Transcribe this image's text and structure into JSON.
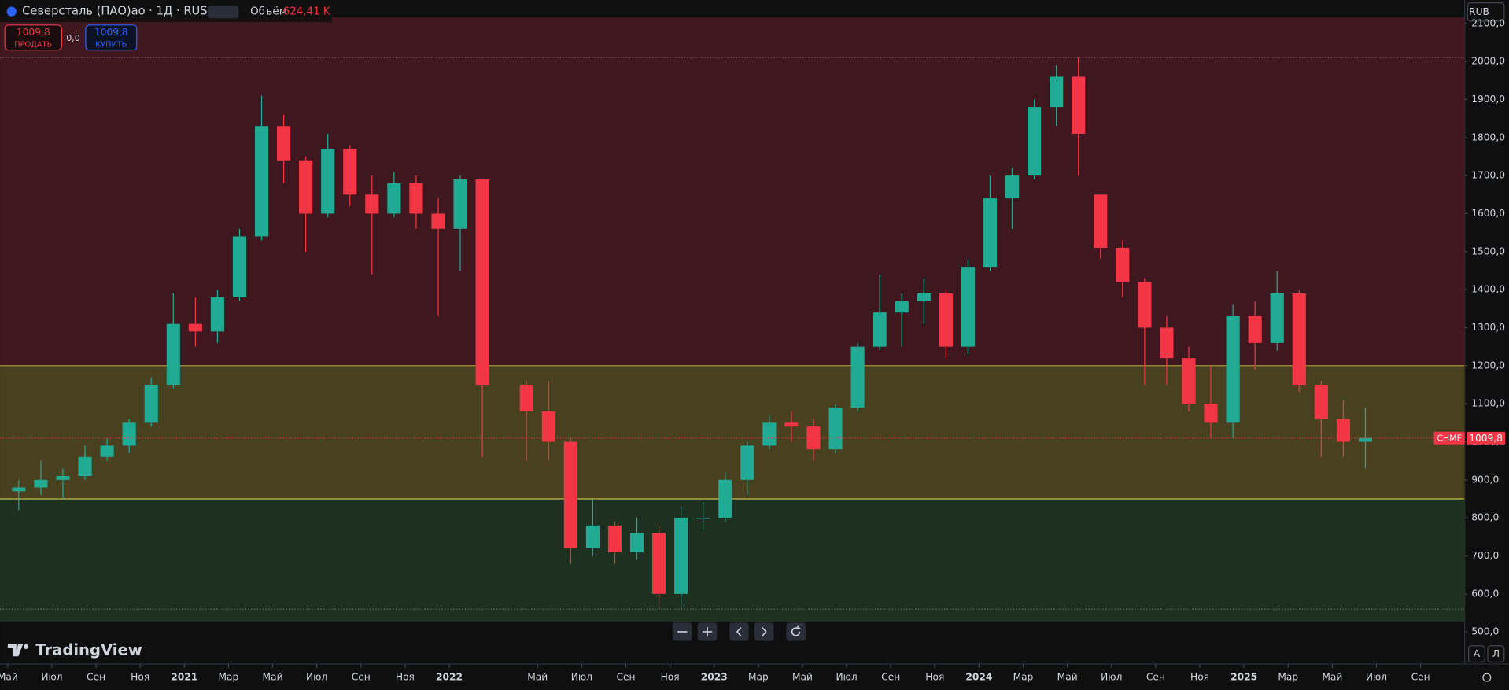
{
  "ui": {
    "symbol": "Северсталь (ПАО)ао · 1Д · RUS",
    "volume_label": "Объём",
    "volume_value": "624,41 K",
    "sell_price": "1009,8",
    "sell_label": "ПРОДАТЬ",
    "spread": "0,0",
    "buy_price": "1009,8",
    "buy_label": "КУПИТЬ",
    "currency": "RUB",
    "ticker": "CHMF",
    "brand": "TradingView",
    "auto_button": "A",
    "log_button": "Л"
  },
  "chart_data": {
    "type": "candlestick",
    "categories": [
      "2020-05",
      "2020-06",
      "2020-07",
      "2020-08",
      "2020-09",
      "2020-10",
      "2020-11",
      "2020-12",
      "2021-01",
      "2021-02",
      "2021-03",
      "2021-04",
      "2021-05",
      "2021-06",
      "2021-07",
      "2021-08",
      "2021-09",
      "2021-10",
      "2021-11",
      "2021-12",
      "2022-01",
      "2022-02",
      "2022-03",
      "2022-04",
      "2022-05",
      "2022-06",
      "2022-07",
      "2022-08",
      "2022-09",
      "2022-10",
      "2022-11",
      "2022-12",
      "2023-01",
      "2023-02",
      "2023-03",
      "2023-04",
      "2023-05",
      "2023-06",
      "2023-07",
      "2023-08",
      "2023-09",
      "2023-10",
      "2023-11",
      "2023-12",
      "2024-01",
      "2024-02",
      "2024-03",
      "2024-04",
      "2024-05",
      "2024-06",
      "2024-07",
      "2024-08",
      "2024-09",
      "2024-10",
      "2024-11",
      "2024-12",
      "2025-01",
      "2025-02",
      "2025-03",
      "2025-04",
      "2025-05",
      "2025-06"
    ],
    "open": [
      870,
      880,
      900,
      910,
      960,
      990,
      1050,
      1150,
      1310,
      1290,
      1380,
      1540,
      1830,
      1740,
      1600,
      1770,
      1650,
      1600,
      1680,
      1600,
      1560,
      1690,
      null,
      1150,
      1080,
      1000,
      720,
      780,
      710,
      760,
      600,
      800,
      800,
      900,
      990,
      1050,
      1040,
      980,
      1090,
      1250,
      1340,
      1370,
      1390,
      1250,
      1460,
      1640,
      1700,
      1880,
      1960,
      1650,
      1510,
      1420,
      1300,
      1220,
      1100,
      1050,
      1330,
      1260,
      1390,
      1150,
      1060,
      1000
    ],
    "high": [
      900,
      950,
      930,
      990,
      1010,
      1060,
      1170,
      1390,
      1380,
      1400,
      1560,
      1910,
      1860,
      1750,
      1810,
      1780,
      1700,
      1710,
      1700,
      1640,
      1700,
      1690,
      null,
      1160,
      1160,
      1010,
      850,
      790,
      800,
      780,
      830,
      840,
      920,
      1000,
      1070,
      1080,
      1060,
      1100,
      1260,
      1440,
      1390,
      1430,
      1400,
      1480,
      1700,
      1720,
      1900,
      1990,
      2010,
      1650,
      1530,
      1430,
      1330,
      1250,
      1200,
      1360,
      1370,
      1450,
      1400,
      1160,
      1110,
      1090
    ],
    "low": [
      820,
      860,
      850,
      900,
      950,
      970,
      1040,
      1140,
      1250,
      1260,
      1370,
      1530,
      1680,
      1500,
      1590,
      1620,
      1440,
      1590,
      1560,
      1330,
      1450,
      960,
      null,
      950,
      950,
      680,
      700,
      680,
      690,
      560,
      560,
      770,
      790,
      860,
      980,
      1000,
      950,
      970,
      1080,
      1240,
      1250,
      1310,
      1220,
      1230,
      1450,
      1560,
      1690,
      1830,
      1700,
      1480,
      1380,
      1150,
      1150,
      1080,
      1010,
      1010,
      1190,
      1240,
      1130,
      960,
      960,
      930
    ],
    "close": [
      880,
      900,
      910,
      960,
      990,
      1050,
      1150,
      1310,
      1290,
      1380,
      1540,
      1830,
      1740,
      1600,
      1770,
      1650,
      1600,
      1680,
      1600,
      1560,
      1690,
      1150,
      null,
      1080,
      1000,
      720,
      780,
      710,
      760,
      600,
      800,
      800,
      900,
      990,
      1050,
      1040,
      980,
      1090,
      1250,
      1340,
      1370,
      1390,
      1250,
      1460,
      1640,
      1700,
      1880,
      1960,
      1810,
      1510,
      1420,
      1300,
      1220,
      1100,
      1050,
      1330,
      1260,
      1390,
      1150,
      1060,
      1000,
      1010
    ],
    "up_color": "#22ab94",
    "down_color": "#f23645",
    "last_price": 1009.8,
    "last_price_label": "1009,8",
    "bands": [
      {
        "low": 1200,
        "high": 2116,
        "color": "#3f181f"
      },
      {
        "low": 850,
        "high": 1200,
        "color": "#48401e"
      },
      {
        "low": 527,
        "high": 850,
        "color": "#1e3020"
      }
    ],
    "levels": [
      {
        "value": 2010,
        "style": "dotted",
        "color": "#8a5a5a"
      },
      {
        "value": 1200,
        "style": "solid",
        "color": "#b5a33a"
      },
      {
        "value": 850,
        "style": "solid",
        "color": "#c8c04a"
      },
      {
        "value": 560,
        "style": "dotted",
        "color": "#6a7a6a"
      }
    ],
    "ylim": [
      527,
      2116
    ],
    "yticks": [
      {
        "value": 500,
        "label": "500,0"
      },
      {
        "value": 600,
        "label": "600,0"
      },
      {
        "value": 700,
        "label": "700,0"
      },
      {
        "value": 800,
        "label": "800,0"
      },
      {
        "value": 900,
        "label": "900,0"
      },
      {
        "value": 1000,
        "label": "1000,0"
      },
      {
        "value": 1100,
        "label": "1100,0"
      },
      {
        "value": 1200,
        "label": "1200,0"
      },
      {
        "value": 1300,
        "label": "1300,0"
      },
      {
        "value": 1400,
        "label": "1400,0"
      },
      {
        "value": 1500,
        "label": "1500,0"
      },
      {
        "value": 1600,
        "label": "1600,0"
      },
      {
        "value": 1700,
        "label": "1700,0"
      },
      {
        "value": 1800,
        "label": "1800,0"
      },
      {
        "value": 1900,
        "label": "1900,0"
      },
      {
        "value": 2000,
        "label": "2000,0"
      },
      {
        "value": 2100,
        "label": "2100,0"
      }
    ],
    "xticks": [
      {
        "value": "2020-05",
        "label": "Май"
      },
      {
        "value": "2020-07",
        "label": "Июл"
      },
      {
        "value": "2020-09",
        "label": "Сен"
      },
      {
        "value": "2020-11",
        "label": "Ноя"
      },
      {
        "value": "2021-01",
        "label": "2021"
      },
      {
        "value": "2021-03",
        "label": "Мар"
      },
      {
        "value": "2021-05",
        "label": "Май"
      },
      {
        "value": "2021-07",
        "label": "Июл"
      },
      {
        "value": "2021-09",
        "label": "Сен"
      },
      {
        "value": "2021-11",
        "label": "Ноя"
      },
      {
        "value": "2022-01",
        "label": "2022"
      },
      {
        "value": "2022-05",
        "label": "Май"
      },
      {
        "value": "2022-07",
        "label": "Июл"
      },
      {
        "value": "2022-09",
        "label": "Сен"
      },
      {
        "value": "2022-11",
        "label": "Ноя"
      },
      {
        "value": "2023-01",
        "label": "2023"
      },
      {
        "value": "2023-03",
        "label": "Мар"
      },
      {
        "value": "2023-05",
        "label": "Май"
      },
      {
        "value": "2023-07",
        "label": "Июл"
      },
      {
        "value": "2023-09",
        "label": "Сен"
      },
      {
        "value": "2023-11",
        "label": "Ноя"
      },
      {
        "value": "2024-01",
        "label": "2024"
      },
      {
        "value": "2024-03",
        "label": "Мар"
      },
      {
        "value": "2024-05",
        "label": "Май"
      },
      {
        "value": "2024-07",
        "label": "Июл"
      },
      {
        "value": "2024-09",
        "label": "Сен"
      },
      {
        "value": "2024-11",
        "label": "Ноя"
      },
      {
        "value": "2025-01",
        "label": "2025"
      },
      {
        "value": "2025-03",
        "label": "Мар"
      },
      {
        "value": "2025-05",
        "label": "Май"
      },
      {
        "value": "2025-07",
        "label": "Июл"
      },
      {
        "value": "2025-09",
        "label": "Сен"
      }
    ]
  }
}
